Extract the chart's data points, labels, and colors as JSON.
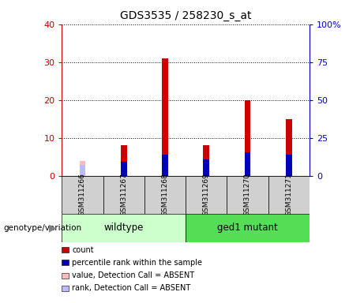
{
  "title": "GDS3535 / 258230_s_at",
  "samples": [
    "GSM311266",
    "GSM311267",
    "GSM311268",
    "GSM311269",
    "GSM311270",
    "GSM311271"
  ],
  "count_values": [
    null,
    8.0,
    31.0,
    8.0,
    20.0,
    15.0
  ],
  "rank_values": [
    null,
    9.0,
    14.0,
    11.0,
    15.5,
    14.0
  ],
  "absent_value": [
    4.0,
    null,
    null,
    null,
    null,
    null
  ],
  "absent_rank": [
    7.0,
    null,
    null,
    null,
    null,
    null
  ],
  "wildtype_indices": [
    0,
    1,
    2
  ],
  "mutant_indices": [
    3,
    4,
    5
  ],
  "wildtype_label": "wildtype",
  "mutant_label": "ged1 mutant",
  "genotype_label": "genotype/variation",
  "left_ylim": [
    0,
    40
  ],
  "right_ylim": [
    0,
    100
  ],
  "left_yticks": [
    0,
    10,
    20,
    30,
    40
  ],
  "right_yticks": [
    0,
    25,
    50,
    75,
    100
  ],
  "right_yticklabels": [
    "0",
    "25",
    "50",
    "75",
    "100%"
  ],
  "left_color": "#cc0000",
  "right_color": "#0000cc",
  "bar_width": 0.15,
  "count_color": "#cc0000",
  "rank_color": "#0000bb",
  "absent_value_color": "#ffbbbb",
  "absent_rank_color": "#bbbbff",
  "wildtype_bg": "#ccffcc",
  "mutant_bg": "#55dd55",
  "sample_bg": "#d0d0d0",
  "legend_labels": [
    "count",
    "percentile rank within the sample",
    "value, Detection Call = ABSENT",
    "rank, Detection Call = ABSENT"
  ],
  "legend_colors": [
    "#cc0000",
    "#0000bb",
    "#ffbbbb",
    "#bbbbff"
  ],
  "rank_scale": 0.4
}
